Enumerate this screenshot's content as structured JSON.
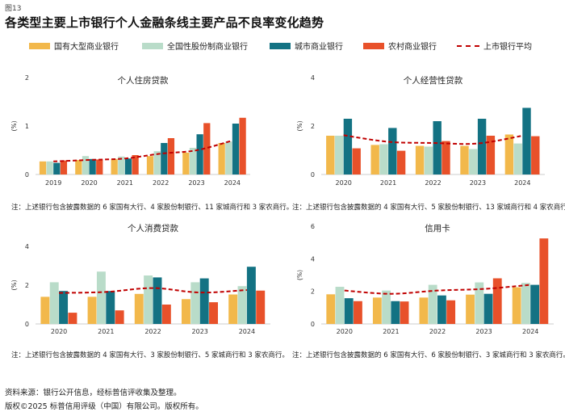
{
  "figure_label": "图13",
  "title": "各类型主要上市银行个人金融条线主要产品不良率变化趋势",
  "legend": [
    {
      "name": "国有大型商业银行",
      "color": "#f2b84b",
      "kind": "bar"
    },
    {
      "name": "全国性股份制商业银行",
      "color": "#b9dcc9",
      "kind": "bar"
    },
    {
      "name": "城市商业银行",
      "color": "#137283",
      "kind": "bar"
    },
    {
      "name": "农村商业银行",
      "color": "#e8512a",
      "kind": "bar"
    },
    {
      "name": "上市银行平均",
      "color": "#c00000",
      "kind": "line"
    }
  ],
  "chart_data": [
    {
      "type": "bar",
      "title": "个人住房贷款",
      "ylabel": "(%)",
      "ylim": [
        0,
        2
      ],
      "yticks": [
        0,
        1,
        2
      ],
      "categories": [
        "2019",
        "2020",
        "2021",
        "2022",
        "2023",
        "2024"
      ],
      "series": [
        {
          "name": "国有大型商业银行",
          "values": [
            0.27,
            0.3,
            0.32,
            0.38,
            0.45,
            0.65
          ]
        },
        {
          "name": "全国性股份制商业银行",
          "values": [
            0.27,
            0.38,
            0.37,
            0.48,
            0.55,
            0.68
          ]
        },
        {
          "name": "城市商业银行",
          "values": [
            0.24,
            0.32,
            0.33,
            0.65,
            0.83,
            1.05
          ]
        },
        {
          "name": "农村商业银行",
          "values": [
            0.29,
            0.31,
            0.4,
            0.75,
            1.06,
            1.17
          ]
        },
        {
          "name": "上市银行平均",
          "type": "line",
          "values": [
            0.27,
            0.3,
            0.33,
            0.43,
            0.5,
            0.7
          ]
        }
      ],
      "note": "注：上述银行包含披露数据的 6 家国有大行、4 家股份制银行、11 家城商行和 3 家农商行。"
    },
    {
      "type": "bar",
      "title": "个人经营性贷款",
      "ylabel": "(%)",
      "ylim": [
        0,
        4
      ],
      "yticks": [
        0,
        2,
        4
      ],
      "categories": [
        "2020",
        "2021",
        "2022",
        "2023",
        "2024"
      ],
      "series": [
        {
          "name": "国有大型商业银行",
          "values": [
            1.6,
            1.22,
            1.18,
            1.18,
            1.65
          ]
        },
        {
          "name": "全国性股份制商业银行",
          "values": [
            1.6,
            1.25,
            1.15,
            1.05,
            1.28
          ]
        },
        {
          "name": "城市商业银行",
          "values": [
            2.3,
            1.92,
            2.2,
            2.3,
            2.75
          ]
        },
        {
          "name": "农村商业银行",
          "values": [
            1.08,
            0.98,
            1.38,
            1.6,
            1.58
          ]
        },
        {
          "name": "上市银行平均",
          "type": "line",
          "values": [
            1.62,
            1.35,
            1.3,
            1.28,
            1.6
          ]
        }
      ],
      "note": "注：上述银行包含披露数据的 4 家国有大行、5 家股份制银行、13 家城商行和 4 家农商行。"
    },
    {
      "type": "bar",
      "title": "个人消费贷款",
      "ylabel": "(%)",
      "ylim": [
        0,
        4
      ],
      "yticks": [
        0,
        2,
        4
      ],
      "categories": [
        "2020",
        "2021",
        "2022",
        "2023",
        "2024"
      ],
      "series": [
        {
          "name": "国有大型商业银行",
          "values": [
            1.4,
            1.4,
            1.55,
            1.28,
            1.52
          ]
        },
        {
          "name": "全国性股份制商业银行",
          "values": [
            2.15,
            2.7,
            2.5,
            2.15,
            1.95
          ]
        },
        {
          "name": "城市商业银行",
          "values": [
            1.7,
            1.7,
            2.4,
            2.35,
            2.95
          ]
        },
        {
          "name": "农村商业银行",
          "values": [
            0.58,
            0.7,
            1.0,
            1.12,
            1.72
          ]
        },
        {
          "name": "上市银行平均",
          "type": "line",
          "values": [
            1.6,
            1.65,
            1.85,
            1.62,
            1.75
          ]
        }
      ],
      "note": "注：上述银行包含披露数据的 4 家国有大行、3 家股份制银行、5 家城商行和 3 家农商行。"
    },
    {
      "type": "bar",
      "title": "信用卡",
      "ylabel": "(%)",
      "ylim": [
        0,
        6
      ],
      "yticks": [
        0,
        2,
        4,
        6
      ],
      "categories": [
        "2020",
        "2021",
        "2022",
        "2023",
        "2024"
      ],
      "series": [
        {
          "name": "国有大型商业银行",
          "values": [
            1.82,
            1.62,
            1.62,
            1.8,
            2.25
          ]
        },
        {
          "name": "全国性股份制商业银行",
          "values": [
            2.28,
            2.05,
            2.4,
            2.55,
            2.52
          ]
        },
        {
          "name": "城市商业银行",
          "values": [
            1.58,
            1.4,
            1.75,
            1.85,
            2.4
          ]
        },
        {
          "name": "农村商业银行",
          "values": [
            1.4,
            1.38,
            1.45,
            2.8,
            5.25
          ]
        },
        {
          "name": "上市银行平均",
          "type": "line",
          "values": [
            2.05,
            1.85,
            2.05,
            2.15,
            2.4
          ]
        }
      ],
      "note": "注：上述银行包含披露数据的 6 家国有大行、6 家股份制银行、3 家城商行和 3 家农商行。"
    }
  ],
  "source": "资料来源：银行公开信息，经标普信评收集及整理。",
  "copyright": "版权©2025 标普信用评级（中国）有限公司。版权所有。"
}
